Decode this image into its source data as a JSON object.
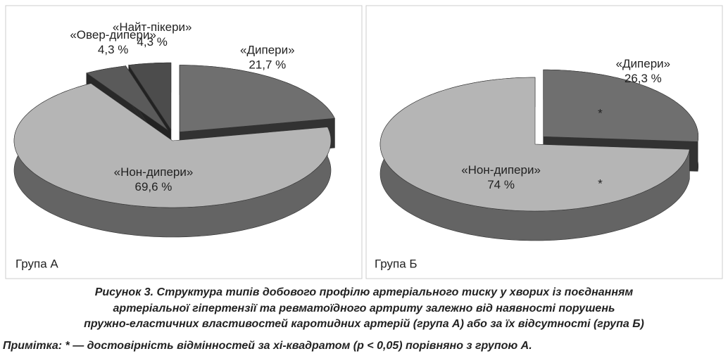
{
  "chart_data": [
    {
      "type": "pie",
      "title": "Група А",
      "categories": [
        "«Дипери»",
        "«Нон-дипери»",
        "«Овер-дипери»",
        "«Найт-пікери»"
      ],
      "values": [
        21.7,
        69.6,
        4.3,
        4.3
      ],
      "value_labels": [
        "21,7 %",
        "69,6 %",
        "4,3 %",
        "4,3 %"
      ],
      "colors": [
        "#6f6f6f",
        "#b5b5b5",
        "#5a5a5a",
        "#4c4c4c"
      ]
    },
    {
      "type": "pie",
      "title": "Група Б",
      "categories": [
        "«Дипери»",
        "«Нон-дипери»"
      ],
      "values": [
        26.3,
        74
      ],
      "value_labels": [
        "26,3 %",
        "74 %"
      ],
      "colors": [
        "#6f6f6f",
        "#b5b5b5"
      ],
      "annotations": [
        "*",
        "*"
      ]
    }
  ],
  "caption": [
    "Рисунок 3.  Структура типів добового профілю артеріального тиску у хворих із поєднанням",
    "артеріальної гіпертензії та ревматоїдного артриту залежно від наявності порушень",
    "пружно-еластичних властивостей каротидних артерій (група А) або за їх відсутності (група Б)"
  ],
  "note": "Примітка:  * — достовірність відмінностей за хі-квадратом (р < 0,05) порівняно з групою А."
}
